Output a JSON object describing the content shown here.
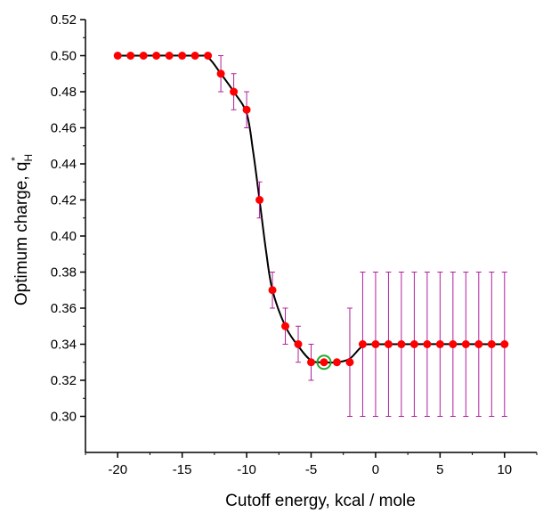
{
  "chart_data": {
    "type": "scatter",
    "xlabel": "Cutoff energy, kcal / mole",
    "ylabel": {
      "text": "Optimum charge, q",
      "sub": "H",
      "sup": "*"
    },
    "xlim": [
      -22.5,
      12.5
    ],
    "ylim": [
      0.28,
      0.52
    ],
    "x_ticks": [
      -20,
      -15,
      -10,
      -5,
      0,
      5,
      10
    ],
    "x_tick_labels": [
      "-20",
      "-15",
      "-10",
      "-5",
      "0",
      "5",
      "10"
    ],
    "y_ticks": [
      0.3,
      0.32,
      0.34,
      0.36,
      0.38,
      0.4,
      0.42,
      0.44,
      0.46,
      0.48,
      0.5,
      0.52
    ],
    "y_tick_labels": [
      "0.30",
      "0.32",
      "0.34",
      "0.36",
      "0.38",
      "0.40",
      "0.42",
      "0.44",
      "0.46",
      "0.48",
      "0.50",
      "0.52"
    ],
    "grid": false,
    "series": [
      {
        "kind": "points_with_error_bars",
        "marker_color": "#ff0000",
        "error_bar_color": "#b0209a",
        "points": [
          {
            "x": -20,
            "y": 0.5,
            "err": 0
          },
          {
            "x": -19,
            "y": 0.5,
            "err": 0
          },
          {
            "x": -18,
            "y": 0.5,
            "err": 0
          },
          {
            "x": -17,
            "y": 0.5,
            "err": 0
          },
          {
            "x": -16,
            "y": 0.5,
            "err": 0
          },
          {
            "x": -15,
            "y": 0.5,
            "err": 0
          },
          {
            "x": -14,
            "y": 0.5,
            "err": 0
          },
          {
            "x": -13,
            "y": 0.5,
            "err": 0
          },
          {
            "x": -12,
            "y": 0.49,
            "err": 0.01
          },
          {
            "x": -11,
            "y": 0.48,
            "err": 0.01
          },
          {
            "x": -10,
            "y": 0.47,
            "err": 0.01
          },
          {
            "x": -9,
            "y": 0.42,
            "err": 0.01
          },
          {
            "x": -8,
            "y": 0.37,
            "err": 0.01
          },
          {
            "x": -7,
            "y": 0.35,
            "err": 0.01
          },
          {
            "x": -6,
            "y": 0.34,
            "err": 0.01
          },
          {
            "x": -5,
            "y": 0.33,
            "err": 0.01
          },
          {
            "x": -4,
            "y": 0.33,
            "err": 0
          },
          {
            "x": -3,
            "y": 0.33,
            "err": 0
          },
          {
            "x": -2,
            "y": 0.33,
            "err": 0.03
          },
          {
            "x": -1,
            "y": 0.34,
            "err": 0.04
          },
          {
            "x": 0,
            "y": 0.34,
            "err": 0.04
          },
          {
            "x": 1,
            "y": 0.34,
            "err": 0.04
          },
          {
            "x": 2,
            "y": 0.34,
            "err": 0.04
          },
          {
            "x": 3,
            "y": 0.34,
            "err": 0.04
          },
          {
            "x": 4,
            "y": 0.34,
            "err": 0.04
          },
          {
            "x": 5,
            "y": 0.34,
            "err": 0.04
          },
          {
            "x": 6,
            "y": 0.34,
            "err": 0.04
          },
          {
            "x": 7,
            "y": 0.34,
            "err": 0.04
          },
          {
            "x": 8,
            "y": 0.34,
            "err": 0.04
          },
          {
            "x": 9,
            "y": 0.34,
            "err": 0.04
          },
          {
            "x": 10,
            "y": 0.34,
            "err": 0.04
          }
        ]
      },
      {
        "kind": "smooth_fit_curve",
        "line_color": "#000000",
        "points": [
          {
            "x": -20,
            "y": 0.5
          },
          {
            "x": -14,
            "y": 0.5
          },
          {
            "x": -13,
            "y": 0.499
          },
          {
            "x": -12,
            "y": 0.49
          },
          {
            "x": -11,
            "y": 0.48
          },
          {
            "x": -10,
            "y": 0.468
          },
          {
            "x": -9.5,
            "y": 0.447
          },
          {
            "x": -9,
            "y": 0.42
          },
          {
            "x": -8.5,
            "y": 0.392
          },
          {
            "x": -8,
            "y": 0.37
          },
          {
            "x": -7,
            "y": 0.35
          },
          {
            "x": -6,
            "y": 0.339
          },
          {
            "x": -5,
            "y": 0.331
          },
          {
            "x": -4,
            "y": 0.33
          },
          {
            "x": -3,
            "y": 0.33
          },
          {
            "x": -2,
            "y": 0.332
          },
          {
            "x": -1,
            "y": 0.339
          },
          {
            "x": 0,
            "y": 0.34
          },
          {
            "x": 10,
            "y": 0.34
          }
        ]
      }
    ],
    "highlighted_point": {
      "x": -4,
      "y": 0.33,
      "ring_color": "#22aa33"
    }
  }
}
